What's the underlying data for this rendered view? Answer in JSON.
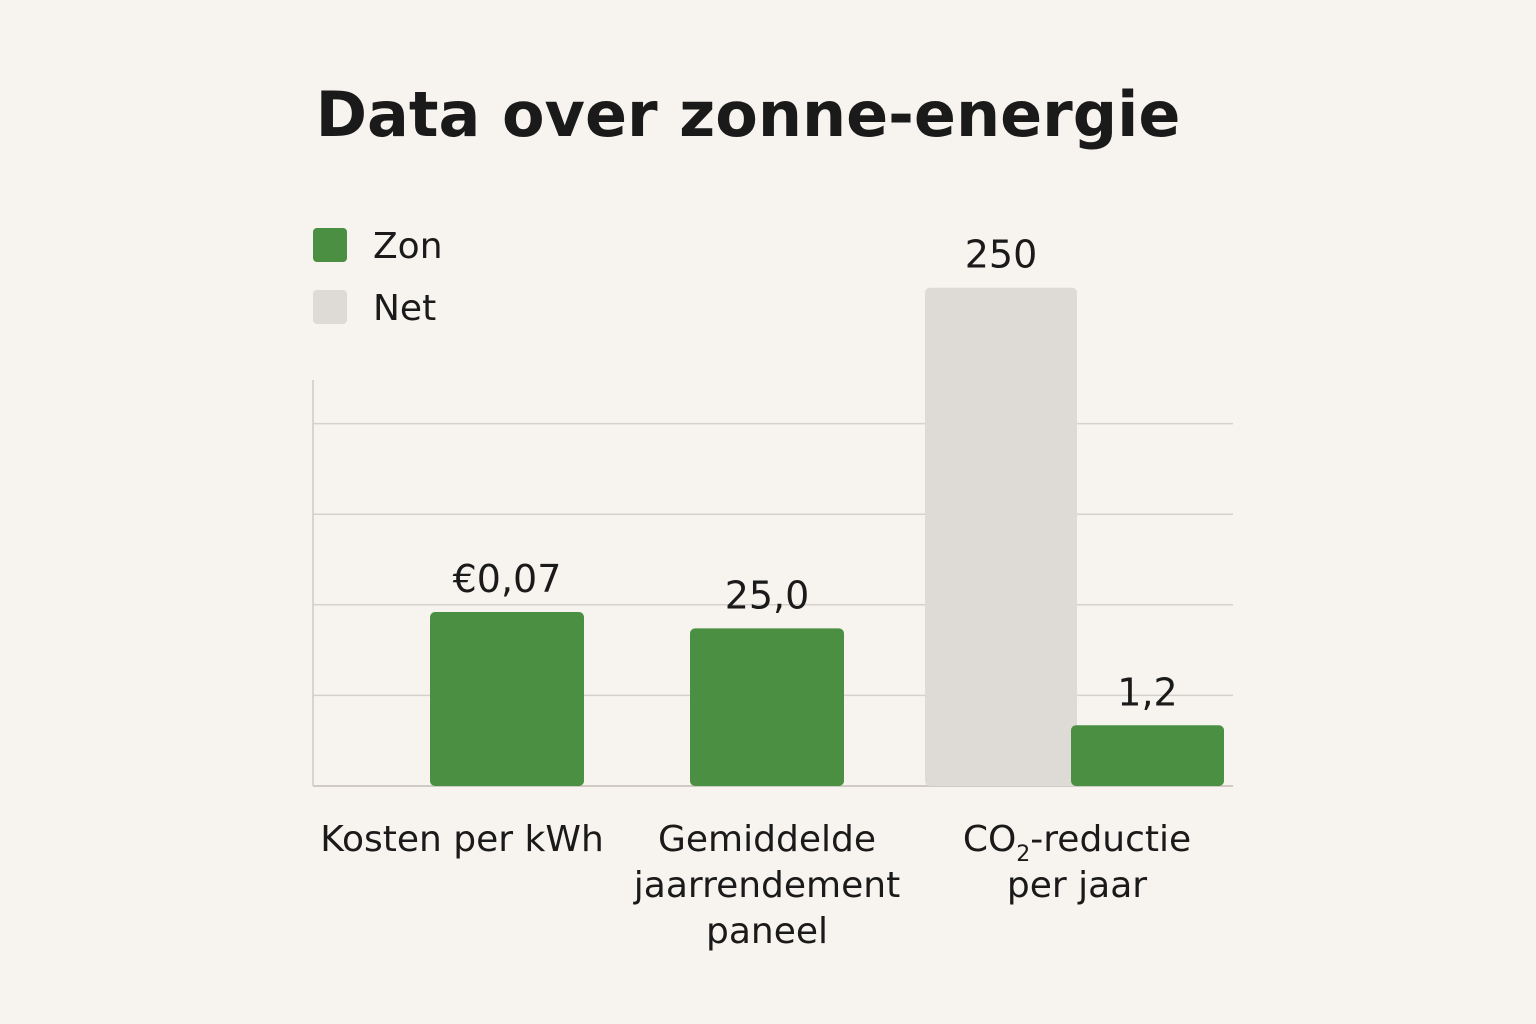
{
  "chart_data": {
    "type": "bar",
    "title": "Data over zonne-energie",
    "legend": {
      "position": "top-left",
      "entries": [
        {
          "name": "Zon",
          "color": "#4a8f42"
        },
        {
          "name": "Net",
          "color": "#dedad5"
        }
      ]
    },
    "grid": true,
    "ylim": [
      0,
      4.5
    ],
    "categories": [
      {
        "label_lines": [
          "Kosten per kWh"
        ]
      },
      {
        "label_lines": [
          "Gemiddelde",
          "jaarrendement",
          "paneel"
        ]
      },
      {
        "label_lines": [
          {
            "main": "CO",
            "sub": "2",
            "rest": "-reductie"
          },
          "per jaar"
        ]
      }
    ],
    "bars": [
      {
        "category": 0,
        "series": "Zon",
        "height_units": 1.92,
        "label": "€0,07"
      },
      {
        "category": 1,
        "series": "Zon",
        "height_units": 1.74,
        "label": "25,0"
      },
      {
        "category": 2,
        "series": "Net",
        "height_units": 5.5,
        "label": "250"
      },
      {
        "category": 2,
        "series": "Zon",
        "height_units": 0.67,
        "label": "1,2"
      }
    ]
  }
}
